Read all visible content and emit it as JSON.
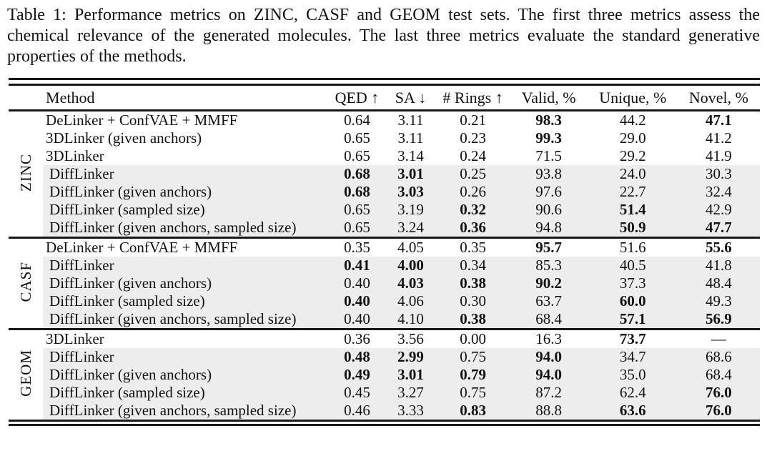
{
  "caption": {
    "text": "Table 1: Performance metrics on ZINC, CASF and GEOM test sets. The first three metrics assess the chemical relevance of the generated molecules. The last three metrics evaluate the standard generative properties of the methods."
  },
  "colors": {
    "row_shade": "#ededed",
    "rule": "#181818",
    "text": "#121212",
    "background": "#ffffff"
  },
  "table": {
    "columns": [
      "Method",
      "QED ↑",
      "SA ↓",
      "# Rings ↑",
      "Valid, %",
      "Unique, %",
      "Novel, %"
    ],
    "groups": [
      {
        "label": "ZINC",
        "rows": [
          {
            "method": "DeLinker + ConfVAE + MMFF",
            "shaded": false,
            "values": [
              {
                "v": "0.64",
                "b": false
              },
              {
                "v": "3.11",
                "b": false
              },
              {
                "v": "0.21",
                "b": false
              },
              {
                "v": "98.3",
                "b": true
              },
              {
                "v": "44.2",
                "b": false
              },
              {
                "v": "47.1",
                "b": true
              }
            ]
          },
          {
            "method": "3DLinker (given anchors)",
            "shaded": false,
            "values": [
              {
                "v": "0.65",
                "b": false
              },
              {
                "v": "3.11",
                "b": false
              },
              {
                "v": "0.23",
                "b": false
              },
              {
                "v": "99.3",
                "b": true
              },
              {
                "v": "29.0",
                "b": false
              },
              {
                "v": "41.2",
                "b": false
              }
            ]
          },
          {
            "method": "3DLinker",
            "shaded": false,
            "values": [
              {
                "v": "0.65",
                "b": false
              },
              {
                "v": "3.14",
                "b": false
              },
              {
                "v": "0.24",
                "b": false
              },
              {
                "v": "71.5",
                "b": false
              },
              {
                "v": "29.2",
                "b": false
              },
              {
                "v": "41.9",
                "b": false
              }
            ]
          },
          {
            "method": "DiffLinker",
            "shaded": true,
            "values": [
              {
                "v": "0.68",
                "b": true
              },
              {
                "v": "3.01",
                "b": true
              },
              {
                "v": "0.25",
                "b": false
              },
              {
                "v": "93.8",
                "b": false
              },
              {
                "v": "24.0",
                "b": false
              },
              {
                "v": "30.3",
                "b": false
              }
            ]
          },
          {
            "method": "DiffLinker (given anchors)",
            "shaded": true,
            "values": [
              {
                "v": "0.68",
                "b": true
              },
              {
                "v": "3.03",
                "b": true
              },
              {
                "v": "0.26",
                "b": false
              },
              {
                "v": "97.6",
                "b": false
              },
              {
                "v": "22.7",
                "b": false
              },
              {
                "v": "32.4",
                "b": false
              }
            ]
          },
          {
            "method": "DiffLinker (sampled size)",
            "shaded": true,
            "values": [
              {
                "v": "0.65",
                "b": false
              },
              {
                "v": "3.19",
                "b": false
              },
              {
                "v": "0.32",
                "b": true
              },
              {
                "v": "90.6",
                "b": false
              },
              {
                "v": "51.4",
                "b": true
              },
              {
                "v": "42.9",
                "b": false
              }
            ]
          },
          {
            "method": "DiffLinker (given anchors, sampled size)",
            "shaded": true,
            "values": [
              {
                "v": "0.65",
                "b": false
              },
              {
                "v": "3.24",
                "b": false
              },
              {
                "v": "0.36",
                "b": true
              },
              {
                "v": "94.8",
                "b": false
              },
              {
                "v": "50.9",
                "b": true
              },
              {
                "v": "47.7",
                "b": true
              }
            ]
          }
        ]
      },
      {
        "label": "CASF",
        "rows": [
          {
            "method": "DeLinker + ConfVAE + MMFF",
            "shaded": false,
            "values": [
              {
                "v": "0.35",
                "b": false
              },
              {
                "v": "4.05",
                "b": false
              },
              {
                "v": "0.35",
                "b": false
              },
              {
                "v": "95.7",
                "b": true
              },
              {
                "v": "51.6",
                "b": false
              },
              {
                "v": "55.6",
                "b": true
              }
            ]
          },
          {
            "method": "DiffLinker",
            "shaded": true,
            "values": [
              {
                "v": "0.41",
                "b": true
              },
              {
                "v": "4.00",
                "b": true
              },
              {
                "v": "0.34",
                "b": false
              },
              {
                "v": "85.3",
                "b": false
              },
              {
                "v": "40.5",
                "b": false
              },
              {
                "v": "41.8",
                "b": false
              }
            ]
          },
          {
            "method": "DiffLinker (given anchors)",
            "shaded": true,
            "values": [
              {
                "v": "0.40",
                "b": false
              },
              {
                "v": "4.03",
                "b": true
              },
              {
                "v": "0.38",
                "b": true
              },
              {
                "v": "90.2",
                "b": true
              },
              {
                "v": "37.3",
                "b": false
              },
              {
                "v": "48.4",
                "b": false
              }
            ]
          },
          {
            "method": "DiffLinker (sampled size)",
            "shaded": true,
            "values": [
              {
                "v": "0.40",
                "b": true
              },
              {
                "v": "4.06",
                "b": false
              },
              {
                "v": "0.30",
                "b": false
              },
              {
                "v": "63.7",
                "b": false
              },
              {
                "v": "60.0",
                "b": true
              },
              {
                "v": "49.3",
                "b": false
              }
            ]
          },
          {
            "method": "DiffLinker (given anchors, sampled size)",
            "shaded": true,
            "values": [
              {
                "v": "0.40",
                "b": false
              },
              {
                "v": "4.10",
                "b": false
              },
              {
                "v": "0.38",
                "b": true
              },
              {
                "v": "68.4",
                "b": false
              },
              {
                "v": "57.1",
                "b": true
              },
              {
                "v": "56.9",
                "b": true
              }
            ]
          }
        ]
      },
      {
        "label": "GEOM",
        "rows": [
          {
            "method": "3DLinker",
            "shaded": false,
            "values": [
              {
                "v": "0.36",
                "b": false
              },
              {
                "v": "3.56",
                "b": false
              },
              {
                "v": "0.00",
                "b": false
              },
              {
                "v": "16.3",
                "b": false
              },
              {
                "v": "73.7",
                "b": true
              },
              {
                "v": "—",
                "b": false
              }
            ]
          },
          {
            "method": "DiffLinker",
            "shaded": true,
            "values": [
              {
                "v": "0.48",
                "b": true
              },
              {
                "v": "2.99",
                "b": true
              },
              {
                "v": "0.75",
                "b": false
              },
              {
                "v": "94.0",
                "b": true
              },
              {
                "v": "34.7",
                "b": false
              },
              {
                "v": "68.6",
                "b": false
              }
            ]
          },
          {
            "method": "DiffLinker (given anchors)",
            "shaded": true,
            "values": [
              {
                "v": "0.49",
                "b": true
              },
              {
                "v": "3.01",
                "b": true
              },
              {
                "v": "0.79",
                "b": true
              },
              {
                "v": "94.0",
                "b": true
              },
              {
                "v": "35.0",
                "b": false
              },
              {
                "v": "68.4",
                "b": false
              }
            ]
          },
          {
            "method": "DiffLinker (sampled size)",
            "shaded": true,
            "values": [
              {
                "v": "0.45",
                "b": false
              },
              {
                "v": "3.27",
                "b": false
              },
              {
                "v": "0.75",
                "b": false
              },
              {
                "v": "87.2",
                "b": false
              },
              {
                "v": "62.4",
                "b": false
              },
              {
                "v": "76.0",
                "b": true
              }
            ]
          },
          {
            "method": "DiffLinker (given anchors, sampled size)",
            "shaded": true,
            "values": [
              {
                "v": "0.46",
                "b": false
              },
              {
                "v": "3.33",
                "b": false
              },
              {
                "v": "0.83",
                "b": true
              },
              {
                "v": "88.8",
                "b": false
              },
              {
                "v": "63.6",
                "b": true
              },
              {
                "v": "76.0",
                "b": true
              }
            ]
          }
        ]
      }
    ]
  }
}
